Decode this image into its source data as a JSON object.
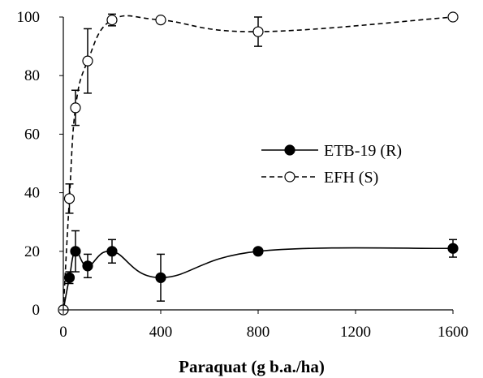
{
  "chart_data": {
    "type": "scatter",
    "xlabel": "Paraquat (g b.a./ha)",
    "ylabel": "",
    "xlim": [
      0,
      1600
    ],
    "ylim": [
      0,
      100
    ],
    "x_ticks": [
      "0",
      "400",
      "800",
      "1200",
      "1600"
    ],
    "y_ticks": [
      "0",
      "20",
      "40",
      "60",
      "80",
      "100"
    ],
    "grid": false,
    "legend_position": "center-right",
    "series": [
      {
        "name": "ETB-19 (R)",
        "marker": "filled-circle",
        "line_style": "solid",
        "color": "#000000",
        "x": [
          0,
          25,
          50,
          100,
          200,
          400,
          800,
          1600
        ],
        "y": [
          0,
          11,
          20,
          15,
          20,
          11,
          20,
          21
        ],
        "error": [
          0,
          2,
          7,
          4,
          4,
          8,
          0,
          3
        ]
      },
      {
        "name": "EFH (S)",
        "marker": "open-circle",
        "line_style": "dashed",
        "color": "#000000",
        "x": [
          0,
          25,
          50,
          100,
          200,
          400,
          800,
          1600
        ],
        "y": [
          0,
          38,
          69,
          85,
          99,
          99,
          95,
          100
        ],
        "error": [
          0,
          5,
          6,
          11,
          2,
          0,
          5,
          0
        ]
      }
    ]
  }
}
